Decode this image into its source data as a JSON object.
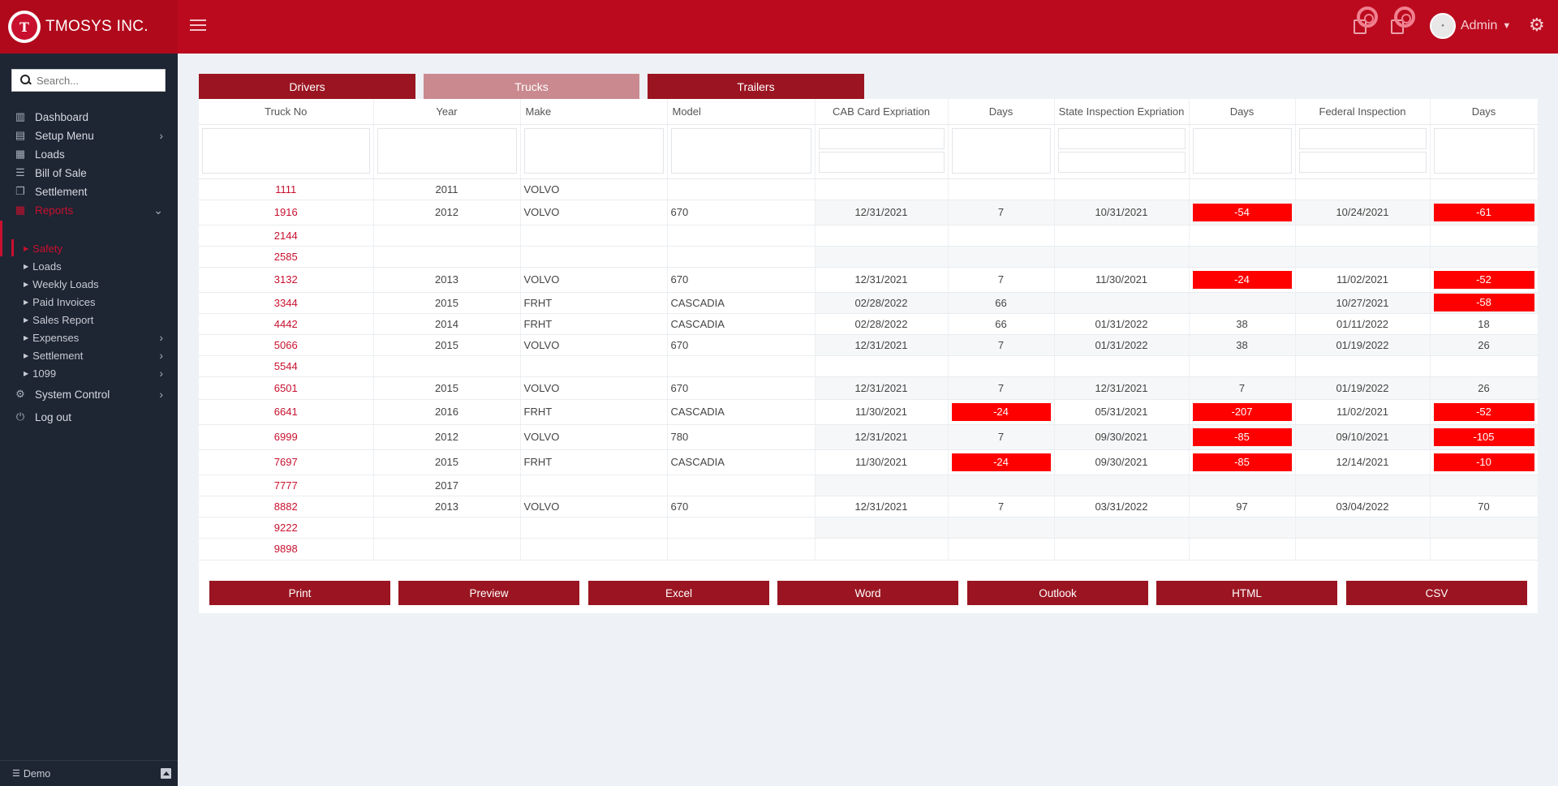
{
  "brand": {
    "name": "TMOSYS INC.",
    "logo_letter": "T"
  },
  "header": {
    "user_name": "Admin"
  },
  "sidebar": {
    "search_placeholder": "Search...",
    "items": [
      {
        "label": "Dashboard",
        "icon": "chart-icon"
      },
      {
        "label": "Setup Menu",
        "icon": "book-icon",
        "has_children": true
      },
      {
        "label": "Loads",
        "icon": "briefcase-icon"
      },
      {
        "label": "Bill of Sale",
        "icon": "list-icon"
      },
      {
        "label": "Settlement",
        "icon": "copy-icon"
      },
      {
        "label": "Reports",
        "icon": "table-icon",
        "expanded": true
      }
    ],
    "report_items": [
      {
        "label": "Safety",
        "active": true
      },
      {
        "label": "Loads"
      },
      {
        "label": "Weekly Loads"
      },
      {
        "label": "Paid Invoices"
      },
      {
        "label": "Sales Report"
      },
      {
        "label": "Expenses",
        "has_children": true
      },
      {
        "label": "Settlement",
        "has_children": true
      },
      {
        "label": "1099",
        "has_children": true
      }
    ],
    "bottom_items": [
      {
        "label": "System Control",
        "icon": "gear-icon",
        "has_children": true
      },
      {
        "label": "Log out",
        "icon": "power-icon"
      }
    ],
    "footer_label": "Demo"
  },
  "tabs": [
    {
      "label": "Drivers"
    },
    {
      "label": "Trucks",
      "active": true
    },
    {
      "label": "Trailers"
    }
  ],
  "table": {
    "columns": [
      "Truck No",
      "Year",
      "Make",
      "Model",
      "CAB Card Expriation",
      "Days",
      "State Inspection Expriation",
      "Days",
      "Federal Inspection",
      "Days"
    ],
    "rows": [
      {
        "truck_no": "1111",
        "year": "2011",
        "make": "VOLVO",
        "model": "",
        "cab": "",
        "cab_days": "",
        "state": "",
        "state_days": "",
        "federal": "",
        "fed_days": ""
      },
      {
        "truck_no": "1916",
        "year": "2012",
        "make": "VOLVO",
        "model": "670",
        "cab": "12/31/2021",
        "cab_days": "7",
        "state": "10/31/2021",
        "state_days": "-54",
        "federal": "10/24/2021",
        "fed_days": "-61"
      },
      {
        "truck_no": "2144",
        "year": "",
        "make": "",
        "model": "",
        "cab": "",
        "cab_days": "",
        "state": "",
        "state_days": "",
        "federal": "",
        "fed_days": ""
      },
      {
        "truck_no": "2585",
        "year": "",
        "make": "",
        "model": "",
        "cab": "",
        "cab_days": "",
        "state": "",
        "state_days": "",
        "federal": "",
        "fed_days": ""
      },
      {
        "truck_no": "3132",
        "year": "2013",
        "make": "VOLVO",
        "model": "670",
        "cab": "12/31/2021",
        "cab_days": "7",
        "state": "11/30/2021",
        "state_days": "-24",
        "federal": "11/02/2021",
        "fed_days": "-52"
      },
      {
        "truck_no": "3344",
        "year": "2015",
        "make": "FRHT",
        "model": "CASCADIA",
        "cab": "02/28/2022",
        "cab_days": "66",
        "state": "",
        "state_days": "",
        "federal": "10/27/2021",
        "fed_days": "-58"
      },
      {
        "truck_no": "4442",
        "year": "2014",
        "make": "FRHT",
        "model": "CASCADIA",
        "cab": "02/28/2022",
        "cab_days": "66",
        "state": "01/31/2022",
        "state_days": "38",
        "federal": "01/11/2022",
        "fed_days": "18"
      },
      {
        "truck_no": "5066",
        "year": "2015",
        "make": "VOLVO",
        "model": "670",
        "cab": "12/31/2021",
        "cab_days": "7",
        "state": "01/31/2022",
        "state_days": "38",
        "federal": "01/19/2022",
        "fed_days": "26"
      },
      {
        "truck_no": "5544",
        "year": "",
        "make": "",
        "model": "",
        "cab": "",
        "cab_days": "",
        "state": "",
        "state_days": "",
        "federal": "",
        "fed_days": ""
      },
      {
        "truck_no": "6501",
        "year": "2015",
        "make": "VOLVO",
        "model": "670",
        "cab": "12/31/2021",
        "cab_days": "7",
        "state": "12/31/2021",
        "state_days": "7",
        "federal": "01/19/2022",
        "fed_days": "26"
      },
      {
        "truck_no": "6641",
        "year": "2016",
        "make": "FRHT",
        "model": "CASCADIA",
        "cab": "11/30/2021",
        "cab_days": "-24",
        "state": "05/31/2021",
        "state_days": "-207",
        "federal": "11/02/2021",
        "fed_days": "-52"
      },
      {
        "truck_no": "6999",
        "year": "2012",
        "make": "VOLVO",
        "model": "780",
        "cab": "12/31/2021",
        "cab_days": "7",
        "state": "09/30/2021",
        "state_days": "-85",
        "federal": "09/10/2021",
        "fed_days": "-105"
      },
      {
        "truck_no": "7697",
        "year": "2015",
        "make": "FRHT",
        "model": "CASCADIA",
        "cab": "11/30/2021",
        "cab_days": "-24",
        "state": "09/30/2021",
        "state_days": "-85",
        "federal": "12/14/2021",
        "fed_days": "-10"
      },
      {
        "truck_no": "7777",
        "year": "2017",
        "make": "",
        "model": "",
        "cab": "",
        "cab_days": "",
        "state": "",
        "state_days": "",
        "federal": "",
        "fed_days": ""
      },
      {
        "truck_no": "8882",
        "year": "2013",
        "make": "VOLVO",
        "model": "670",
        "cab": "12/31/2021",
        "cab_days": "7",
        "state": "03/31/2022",
        "state_days": "97",
        "federal": "03/04/2022",
        "fed_days": "70"
      },
      {
        "truck_no": "9222",
        "year": "",
        "make": "",
        "model": "",
        "cab": "",
        "cab_days": "",
        "state": "",
        "state_days": "",
        "federal": "",
        "fed_days": ""
      },
      {
        "truck_no": "9898",
        "year": "",
        "make": "",
        "model": "",
        "cab": "",
        "cab_days": "",
        "state": "",
        "state_days": "",
        "federal": "",
        "fed_days": ""
      }
    ]
  },
  "export_buttons": [
    "Print",
    "Preview",
    "Excel",
    "Word",
    "Outlook",
    "HTML",
    "CSV"
  ],
  "colors": {
    "brand_red": "#bb0a1e",
    "negative": "#ff0000",
    "sidebar_bg": "#1e2533",
    "button_red": "#9a1521"
  }
}
